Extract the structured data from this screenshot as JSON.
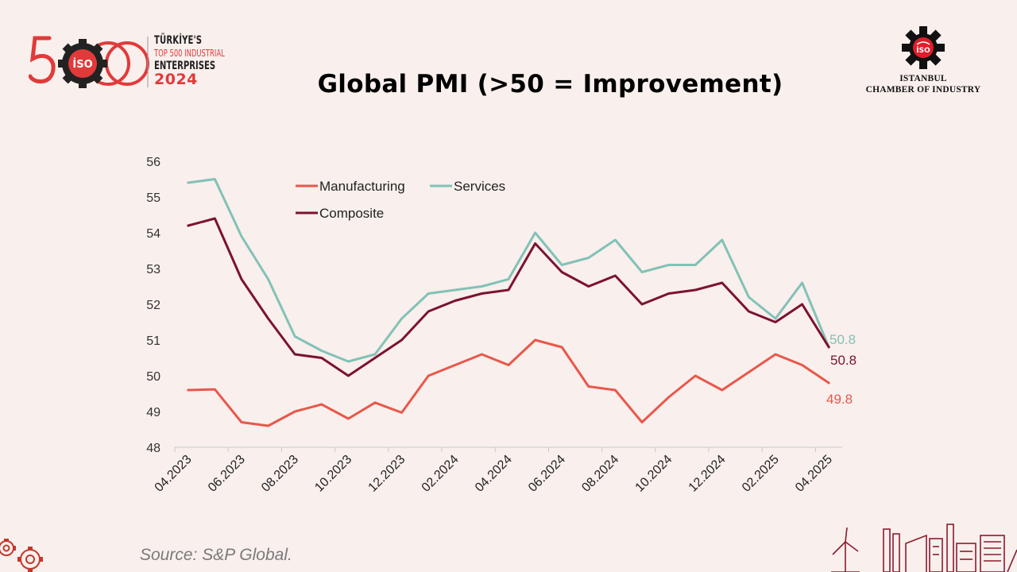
{
  "header": {
    "logo_number": "500",
    "logo_emblem": "İSO",
    "logo_lines": [
      "TÜRKİYE'S",
      "TOP 500 INDUSTRIAL",
      "ENTERPRISES",
      "2024"
    ],
    "org_emblem": "İSO",
    "org_name_line1": "ISTANBUL",
    "org_name_line2": "CHAMBER OF INDUSTRY"
  },
  "colors": {
    "manufacturing": "#e8584a",
    "services": "#82c2b6",
    "composite": "#7c1230",
    "brand_red": "#e23a3a",
    "background": "#f9efed"
  },
  "chart_data": {
    "type": "line",
    "title": "Global PMI (>50 = Improvement)",
    "xlabel": "",
    "ylabel": "",
    "ylim": [
      48,
      56
    ],
    "yticks": [
      48,
      49,
      50,
      51,
      52,
      53,
      54,
      55,
      56
    ],
    "grid": false,
    "legend_position": "top-left",
    "x": [
      "04.2023",
      "05.2023",
      "06.2023",
      "07.2023",
      "08.2023",
      "09.2023",
      "10.2023",
      "11.2023",
      "12.2023",
      "01.2024",
      "02.2024",
      "03.2024",
      "04.2024",
      "05.2024",
      "06.2024",
      "07.2024",
      "08.2024",
      "09.2024",
      "10.2024",
      "11.2024",
      "12.2024",
      "01.2025",
      "02.2025",
      "03.2025",
      "04.2025"
    ],
    "xtick_labels": [
      "04.2023",
      "06.2023",
      "08.2023",
      "10.2023",
      "12.2023",
      "02.2024",
      "04.2024",
      "06.2024",
      "08.2024",
      "10.2024",
      "12.2024",
      "02.2025",
      "04.2025"
    ],
    "series": [
      {
        "name": "Manufacturing",
        "key": "manufacturing",
        "values": [
          49.6,
          49.62,
          48.7,
          48.6,
          49.0,
          49.2,
          48.8,
          49.25,
          48.97,
          50.0,
          50.3,
          50.6,
          50.3,
          51.0,
          50.8,
          49.7,
          49.6,
          48.7,
          49.4,
          50.0,
          49.6,
          50.1,
          50.6,
          50.3,
          49.8
        ],
        "end_label": "49.8"
      },
      {
        "name": "Services",
        "key": "services",
        "values": [
          55.4,
          55.5,
          53.9,
          52.7,
          51.1,
          50.7,
          50.4,
          50.6,
          51.6,
          52.3,
          52.4,
          52.5,
          52.7,
          54.0,
          53.1,
          53.3,
          53.8,
          52.9,
          53.1,
          53.1,
          53.8,
          52.2,
          51.6,
          52.6,
          50.8
        ],
        "end_label": "50.8"
      },
      {
        "name": "Composite",
        "key": "composite",
        "values": [
          54.2,
          54.4,
          52.7,
          51.6,
          50.6,
          50.5,
          50.0,
          50.5,
          51.0,
          51.8,
          52.1,
          52.3,
          52.4,
          53.7,
          52.9,
          52.5,
          52.8,
          52.0,
          52.3,
          52.4,
          52.6,
          51.8,
          51.5,
          52.0,
          50.8
        ],
        "end_label": "50.8"
      }
    ]
  },
  "footer": {
    "source": "Source: S&P Global."
  }
}
